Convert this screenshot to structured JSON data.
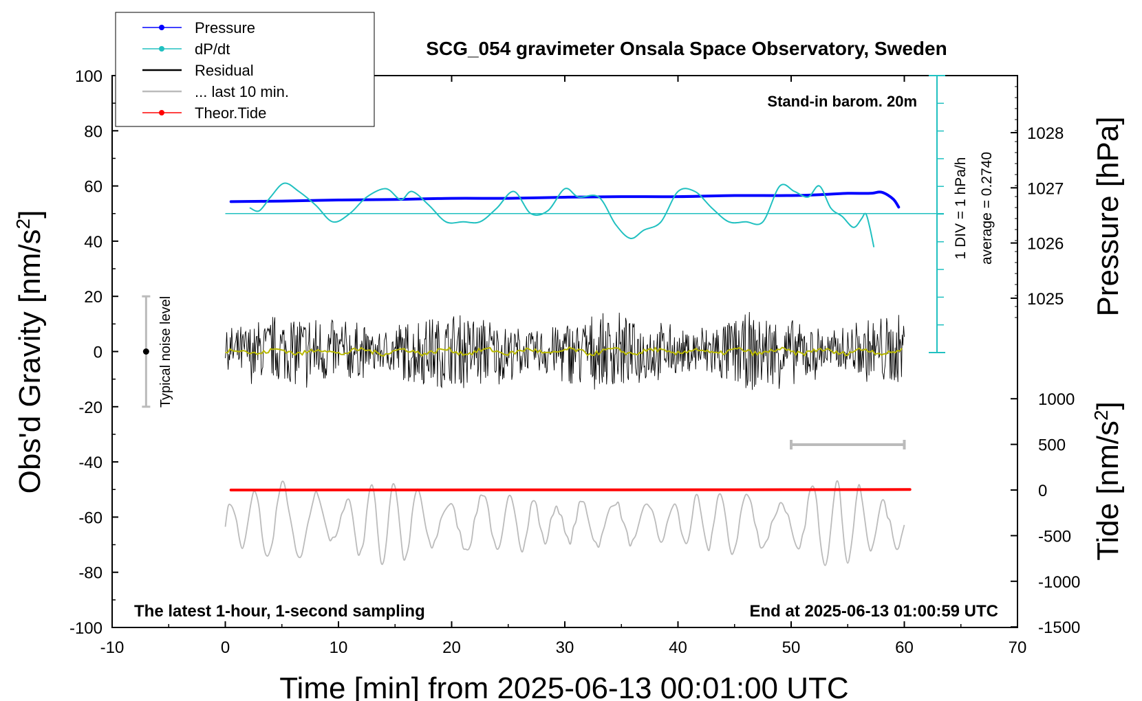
{
  "chart_data": {
    "type": "line",
    "title": "SCG_054 gravimeter Onsala Space Observatory, Sweden",
    "xlabel": "Time [min] from 2025-06-13 00:01:00 UTC",
    "ylabel_left_base": "Obs'd Gravity [nm/s",
    "ylabel_left_sup": "2",
    "ylabel_left_end": "]",
    "ylabel_right_top": "Pressure [hPa]",
    "ylabel_right_bottom_base": "Tide [nm/s",
    "ylabel_right_bottom_sup": "2",
    "ylabel_right_bottom_end": "]",
    "xlim": [
      -10,
      70
    ],
    "ylim": [
      -100,
      100
    ],
    "pressure_axis": {
      "ticks": [
        1025,
        1026,
        1027,
        1028
      ]
    },
    "tide_axis": {
      "ticks": [
        -1500,
        -1000,
        -500,
        0,
        500,
        1000
      ]
    },
    "x_ticks": [
      -10,
      0,
      10,
      20,
      30,
      40,
      50,
      60,
      70
    ],
    "y_ticks": [
      -100,
      -80,
      -60,
      -40,
      -20,
      0,
      20,
      40,
      60,
      80,
      100
    ],
    "legend": {
      "placement": "top-left",
      "entries": [
        {
          "label": "Pressure",
          "color": "#0000ff",
          "marker": true
        },
        {
          "label": "dP/dt",
          "color": "#20c0c0",
          "marker": true
        },
        {
          "label": "Residual",
          "color": "#000000",
          "marker": false
        },
        {
          "label": "... last 10 min.",
          "color": "#bbbbbb",
          "marker": false
        },
        {
          "label": "Theor.Tide",
          "color": "#ff0000",
          "marker": true
        }
      ]
    },
    "annotations": {
      "barometer": "Stand-in barom. 20m",
      "noise": "Typical noise level",
      "dpdt_scale": "1 DIV = 1 hPa/h",
      "dpdt_average": "average = 0.2740",
      "bottom_left": "The latest 1-hour, 1-second sampling",
      "bottom_right": "End at 2025-06-13 01:00:59 UTC"
    },
    "series": [
      {
        "name": "Pressure",
        "color": "#0000ff",
        "unit": "hPa",
        "x": [
          0.5,
          5,
          10,
          15,
          20,
          25,
          30,
          35,
          40,
          45,
          50,
          53,
          55,
          57,
          58,
          59,
          59.5
        ],
        "values": [
          1026.75,
          1026.76,
          1026.78,
          1026.79,
          1026.81,
          1026.81,
          1026.83,
          1026.84,
          1026.84,
          1026.86,
          1026.86,
          1026.88,
          1026.9,
          1026.9,
          1026.92,
          1026.8,
          1026.65
        ]
      },
      {
        "name": "dP/dt",
        "color": "#20c0c0",
        "unit": "level nm/s2 on display axis",
        "x": [
          2.2,
          3,
          4,
          5.2,
          6.5,
          8,
          9.5,
          11,
          12.5,
          14.2,
          15.5,
          16.5,
          18,
          19.5,
          21,
          22.5,
          24,
          25.5,
          27,
          28.5,
          30,
          31.2,
          33,
          34.5,
          35.8,
          37,
          38.5,
          40,
          41.5,
          43,
          44.5,
          46,
          47.5,
          49,
          50.3,
          51.5,
          52.5,
          53.5,
          54.5,
          55.5,
          56.2,
          56.5,
          56.7,
          57,
          57.3
        ],
        "values": [
          52,
          51,
          56,
          61,
          58,
          53,
          47,
          50,
          56,
          59,
          55,
          58,
          53,
          47,
          47,
          47,
          52,
          58,
          50,
          51,
          59,
          56,
          56,
          46,
          41,
          44,
          47,
          58,
          58,
          52,
          47,
          47,
          47,
          60,
          58,
          56,
          60,
          52,
          49,
          45,
          48,
          50,
          49,
          44,
          38
        ]
      },
      {
        "name": "Theor.Tide",
        "color": "#ff0000",
        "unit": "nm/s2",
        "x": [
          0.5,
          15,
          30,
          45,
          60.5
        ],
        "values": [
          0,
          1,
          2,
          3,
          5
        ]
      }
    ],
    "reference_lines": [
      {
        "y": 50,
        "color": "#20c0c0"
      }
    ],
    "noise_bar": {
      "x": -7,
      "range": [
        -20,
        20
      ],
      "center": 0
    },
    "bracket_last_10min": {
      "x": [
        50,
        60
      ]
    }
  }
}
